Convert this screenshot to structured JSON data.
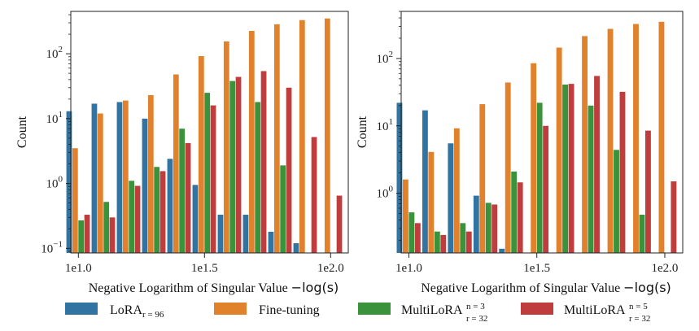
{
  "chart_data": [
    {
      "type": "bar",
      "panel": "left",
      "xlabel": "Negative Logarithm of Singular Value",
      "xlabel_math": "−log(s)",
      "ylabel": "Count",
      "yscale": "log",
      "ylim": [
        0.085,
        450
      ],
      "xlim": [
        0.97,
        2.07
      ],
      "x_ticks": [
        {
          "value": 1.0,
          "label": "1e1.0"
        },
        {
          "value": 1.5,
          "label": "1e1.5"
        },
        {
          "value": 2.0,
          "label": "1e2.0"
        }
      ],
      "y_ticks": [
        {
          "value": 0.1,
          "base": "10",
          "exp": "−1"
        },
        {
          "value": 1,
          "base": "10",
          "exp": "0"
        },
        {
          "value": 10,
          "base": "10",
          "exp": "1"
        },
        {
          "value": 100,
          "base": "10",
          "exp": "2"
        }
      ],
      "bin_centers": [
        1.0,
        1.1,
        1.2,
        1.3,
        1.4,
        1.5,
        1.6,
        1.7,
        1.8,
        1.9,
        2.0
      ],
      "series": [
        {
          "name": "LoRA",
          "values": [
            13,
            17,
            18,
            10,
            2.4,
            0.95,
            0.33,
            0.33,
            0.18,
            0.12,
            null
          ]
        },
        {
          "name": "Fine-tuning",
          "values": [
            3.5,
            12,
            19,
            23,
            48,
            92,
            155,
            225,
            285,
            330,
            350
          ]
        },
        {
          "name": "MultiLoRA n=3",
          "values": [
            0.27,
            0.52,
            1.1,
            1.8,
            7.0,
            25,
            38,
            18,
            1.9,
            null,
            null
          ]
        },
        {
          "name": "MultiLoRA n=5",
          "values": [
            0.33,
            0.3,
            0.92,
            1.55,
            4.2,
            16,
            44,
            54,
            30,
            5.2,
            0.65
          ]
        }
      ]
    },
    {
      "type": "bar",
      "panel": "right",
      "xlabel": "Negative Logarithm of Singular Value",
      "xlabel_math": "−log(s)",
      "ylabel": "Count",
      "yscale": "log",
      "ylim": [
        0.13,
        500
      ],
      "xlim": [
        0.97,
        2.07
      ],
      "x_ticks": [
        {
          "value": 1.0,
          "label": "1e1.0"
        },
        {
          "value": 1.5,
          "label": "1e1.5"
        },
        {
          "value": 2.0,
          "label": "1e2.0"
        }
      ],
      "y_ticks": [
        {
          "value": 1,
          "base": "10",
          "exp": "0"
        },
        {
          "value": 10,
          "base": "10",
          "exp": "1"
        },
        {
          "value": 100,
          "base": "10",
          "exp": "2"
        }
      ],
      "bin_centers": [
        1.0,
        1.1,
        1.2,
        1.3,
        1.4,
        1.5,
        1.6,
        1.7,
        1.8,
        1.9,
        2.0
      ],
      "series": [
        {
          "name": "LoRA",
          "values": [
            22,
            17,
            5.5,
            0.92,
            0.15,
            null,
            null,
            null,
            null,
            null,
            null
          ]
        },
        {
          "name": "Fine-tuning",
          "values": [
            1.6,
            4.1,
            9.2,
            21,
            44,
            85,
            145,
            215,
            275,
            325,
            350
          ]
        },
        {
          "name": "MultiLoRA n=3",
          "values": [
            0.52,
            0.27,
            0.36,
            0.72,
            2.1,
            22,
            41,
            20,
            4.4,
            0.48,
            null
          ]
        },
        {
          "name": "MultiLoRA n=5",
          "values": [
            0.36,
            0.24,
            0.27,
            0.68,
            1.45,
            10,
            42,
            55,
            32,
            8.5,
            1.5
          ]
        }
      ]
    }
  ],
  "legend": {
    "placement": "bottom",
    "items": [
      {
        "label": "LoRA",
        "sub": "r = 96",
        "sup": "",
        "color": "#3274a1"
      },
      {
        "label": "Fine-tuning",
        "sub": "",
        "sup": "",
        "color": "#e1812c"
      },
      {
        "label": "MultiLoRA",
        "sub": "r = 32",
        "sup": "n = 3",
        "color": "#3a923a"
      },
      {
        "label": "MultiLoRA",
        "sub": "r = 32",
        "sup": "n = 5",
        "color": "#c03d3e"
      }
    ]
  },
  "colors": [
    "#3274a1",
    "#e1812c",
    "#3a923a",
    "#c03d3e"
  ]
}
